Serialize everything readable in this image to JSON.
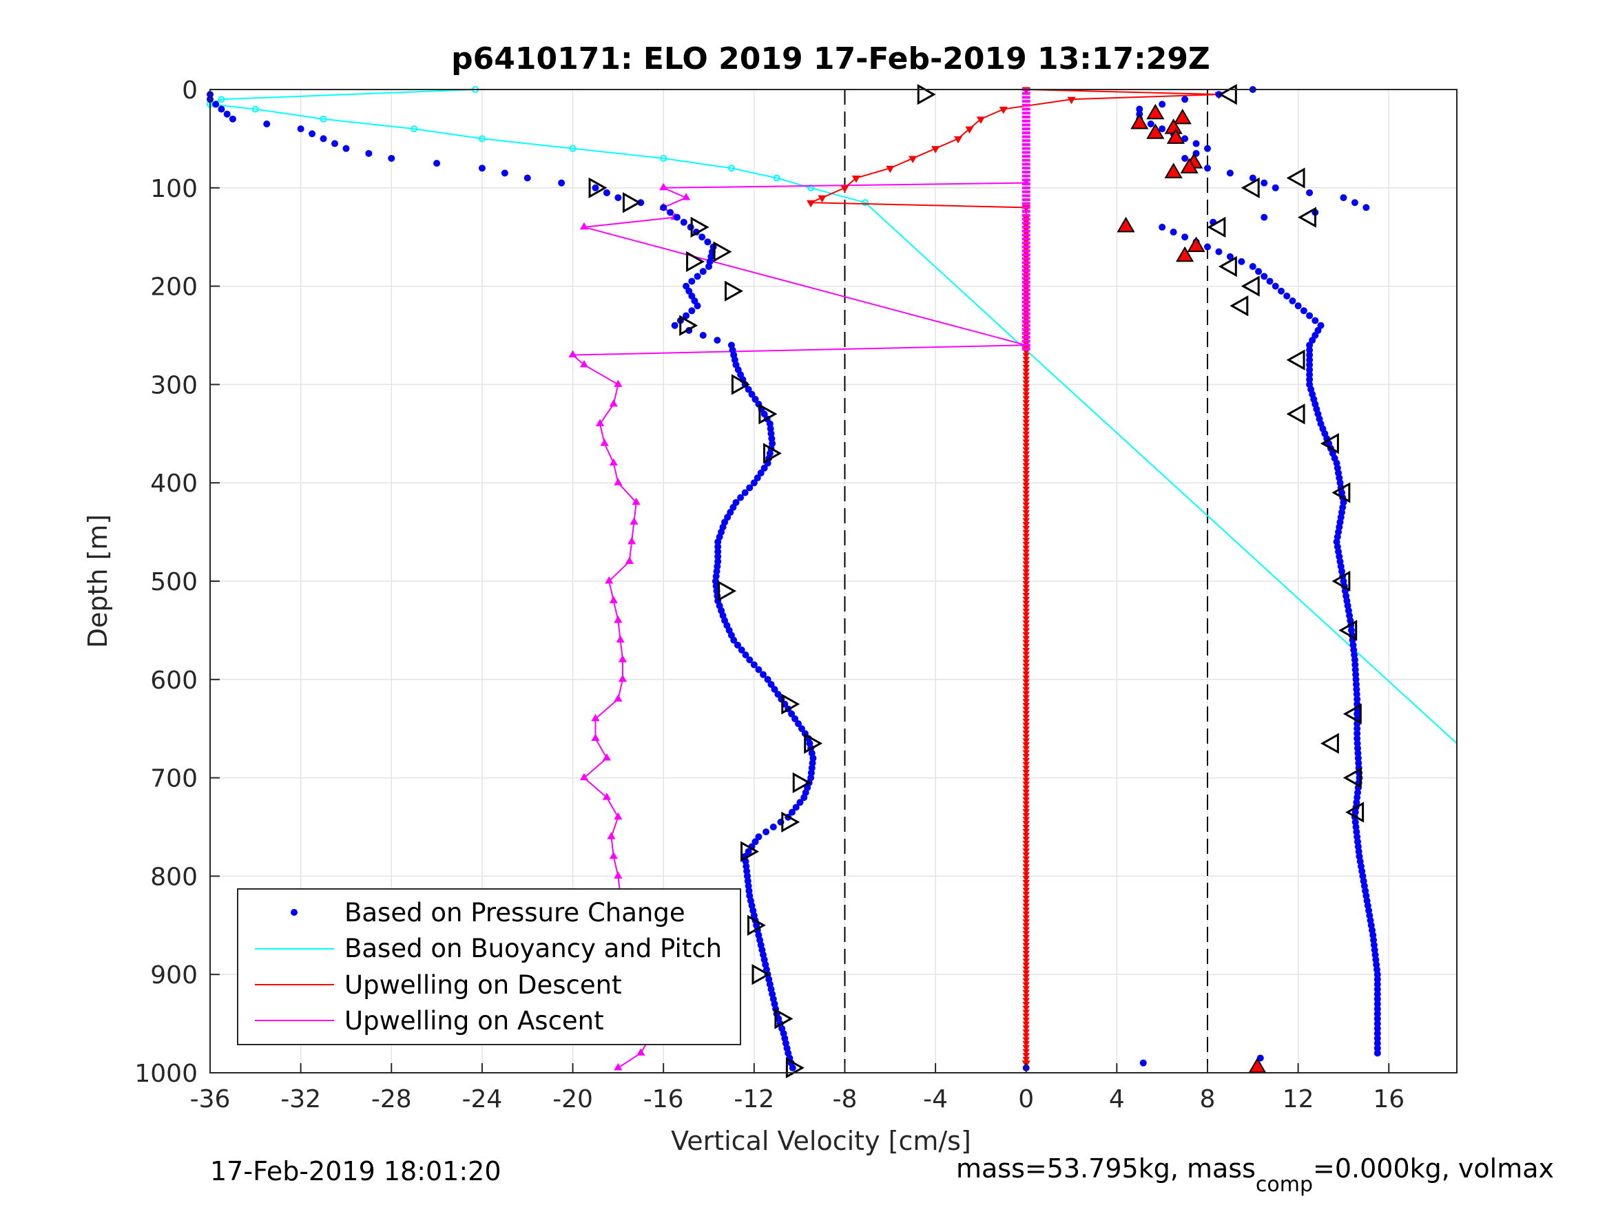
{
  "chart_data": {
    "type": "scatter",
    "title": "p6410171: ELO 2019 17-Feb-2019 13:17:29Z",
    "xlabel": "Vertical Velocity [cm/s]",
    "ylabel": "Depth [m]",
    "xlim": [
      -36,
      19
    ],
    "ylim": [
      0,
      1000
    ],
    "y_reversed": true,
    "grid": true,
    "xticks": [
      "-36",
      "-32",
      "-28",
      "-24",
      "-20",
      "-16",
      "-12",
      "-8",
      "-4",
      "0",
      "4",
      "8",
      "12",
      "16"
    ],
    "yticks": [
      "0",
      "100",
      "200",
      "300",
      "400",
      "500",
      "600",
      "700",
      "800",
      "900",
      "1000"
    ],
    "reference_lines_x": [
      -8,
      8
    ],
    "legend_position": "bottom-left",
    "legend": [
      "Based on Pressure Change",
      "Based on Buoyancy and Pitch",
      "Upwelling on Descent",
      "Upwelling on Ascent"
    ],
    "colors": {
      "pressure": "#0000ff",
      "buoyancy": "#00ffff",
      "descent": "#ff0000",
      "ascent": "#ff00ff",
      "markers": "#000000"
    },
    "series": [
      {
        "name": "Based on Pressure Change (descent)",
        "depth": [
          0,
          10,
          20,
          30,
          40,
          50,
          60,
          70,
          80,
          90,
          100,
          110,
          120,
          140,
          160,
          180,
          200,
          220,
          240,
          260,
          300,
          340,
          380,
          420,
          460,
          500,
          540,
          580,
          620,
          660,
          700,
          740,
          780,
          820,
          860,
          900,
          940,
          980,
          995
        ],
        "velocity": [
          10,
          7,
          5,
          5,
          6,
          7,
          8,
          7,
          8,
          10,
          11,
          14,
          15,
          6,
          8,
          10,
          11,
          12,
          13,
          12.5,
          12.5,
          13,
          13.7,
          14,
          13.7,
          14,
          14.3,
          14.5,
          14.6,
          14.6,
          14.7,
          14.5,
          14.7,
          15,
          15.3,
          15.5,
          15.5,
          15.5,
          0
        ]
      },
      {
        "name": "Based on Pressure Change (ascent)",
        "depth": [
          995,
          980,
          960,
          940,
          920,
          900,
          880,
          860,
          840,
          820,
          800,
          780,
          760,
          740,
          720,
          700,
          680,
          660,
          640,
          620,
          600,
          580,
          560,
          540,
          520,
          500,
          480,
          460,
          440,
          420,
          400,
          380,
          360,
          340,
          320,
          300,
          280,
          260,
          240,
          220,
          200,
          180,
          160,
          140,
          120,
          110,
          100,
          90,
          80,
          70,
          60,
          50,
          40,
          30,
          20,
          10,
          5
        ],
        "velocity": [
          -10.3,
          -10.5,
          -10.7,
          -11,
          -11.2,
          -11.4,
          -11.6,
          -11.8,
          -12,
          -12.2,
          -12.3,
          -12.4,
          -11.8,
          -10.5,
          -9.8,
          -9.5,
          -9.4,
          -9.6,
          -10.2,
          -10.8,
          -11.4,
          -12.2,
          -12.9,
          -13.3,
          -13.6,
          -13.7,
          -13.6,
          -13.6,
          -13.3,
          -12.8,
          -12,
          -11.4,
          -11.2,
          -11.3,
          -11.8,
          -12.4,
          -12.8,
          -13,
          -15.5,
          -14.5,
          -15,
          -14,
          -13.8,
          -14.8,
          -16,
          -18,
          -19,
          -22,
          -24,
          -28,
          -30,
          -31,
          -32,
          -35,
          -35.5,
          -36,
          -36
        ]
      },
      {
        "name": "Based on Buoyancy and Pitch",
        "depth": [
          0,
          10,
          15,
          20,
          30,
          40,
          50,
          60,
          70,
          80,
          90,
          100,
          115,
          265,
          665
        ],
        "velocity": [
          -24.3,
          -35.5,
          -36,
          -34,
          -31,
          -27,
          -24,
          -20,
          -16,
          -13,
          -11,
          -9.5,
          -7.1,
          0,
          19
        ]
      },
      {
        "name": "Upwelling on Descent",
        "depth": [
          0,
          5,
          10,
          20,
          30,
          40,
          50,
          60,
          70,
          80,
          90,
          100,
          110,
          115,
          120,
          130,
          990
        ],
        "velocity": [
          0,
          8.5,
          2,
          -1,
          -2,
          -2.5,
          -3,
          -4,
          -5,
          -6,
          -7.5,
          -8,
          -9,
          -9.5,
          0,
          0,
          0
        ]
      },
      {
        "name": "Upwelling on Ascent",
        "depth": [
          995,
          980,
          960,
          940,
          920,
          900,
          880,
          860,
          840,
          820,
          800,
          780,
          760,
          740,
          720,
          700,
          680,
          660,
          640,
          620,
          600,
          580,
          560,
          540,
          520,
          500,
          480,
          460,
          440,
          420,
          400,
          380,
          360,
          340,
          320,
          300,
          280,
          270,
          260,
          140,
          130,
          120,
          110,
          100,
          95
        ],
        "velocity": [
          -18,
          -17,
          -16.5,
          -17,
          -16.8,
          -17,
          -17.2,
          -17.5,
          -17.8,
          -17.9,
          -18,
          -18.2,
          -18.3,
          -18,
          -18.5,
          -19.5,
          -18.5,
          -19,
          -19,
          -18,
          -17.8,
          -17.8,
          -17.9,
          -18,
          -18.2,
          -18.4,
          -17.5,
          -17.4,
          -17.3,
          -17.2,
          -18,
          -18.2,
          -18.6,
          -18.8,
          -18.2,
          -18,
          -19.5,
          -20,
          0,
          -19.5,
          -15.5,
          -16,
          -15,
          -16,
          0
        ]
      }
    ],
    "markers_right_depth": [
      5,
      90,
      100,
      130,
      140,
      180,
      200,
      220,
      275,
      330,
      360,
      410,
      500,
      550,
      635,
      665,
      700,
      735
    ],
    "markers_right_velocity": [
      9,
      12,
      10,
      12.5,
      8.5,
      9,
      10,
      9.5,
      12,
      12,
      13.5,
      14,
      14,
      14.3,
      14.5,
      13.5,
      14.5,
      14.6
    ],
    "markers_left_depth": [
      5,
      100,
      115,
      140,
      165,
      175,
      205,
      240,
      300,
      330,
      370,
      510,
      625,
      665,
      705,
      745,
      775,
      850,
      900,
      945,
      995
    ],
    "markers_left_velocity": [
      -4.5,
      -19,
      -17.5,
      -14.5,
      -13.5,
      -14.7,
      -13,
      -15,
      -12.7,
      -11.5,
      -11.3,
      -13.3,
      -10.5,
      -9.5,
      -10,
      -10.5,
      -12.3,
      -12,
      -11.8,
      -10.8,
      -10.3
    ],
    "descent_red_markers_depth": [
      25,
      30,
      35,
      40,
      45,
      50,
      75,
      80,
      85,
      140,
      160,
      170,
      995
    ],
    "descent_red_markers_velocity": [
      5.7,
      6.9,
      5,
      6.5,
      5.7,
      6.6,
      7.4,
      7.2,
      6.5,
      4.4,
      7.5,
      7,
      10.2
    ]
  },
  "footer_left": "17-Feb-2019 18:01:20",
  "footer_right": "mass=53.795kg, mass",
  "footer_right_sub": "comp",
  "footer_right_tail": "=0.000kg, volmax"
}
